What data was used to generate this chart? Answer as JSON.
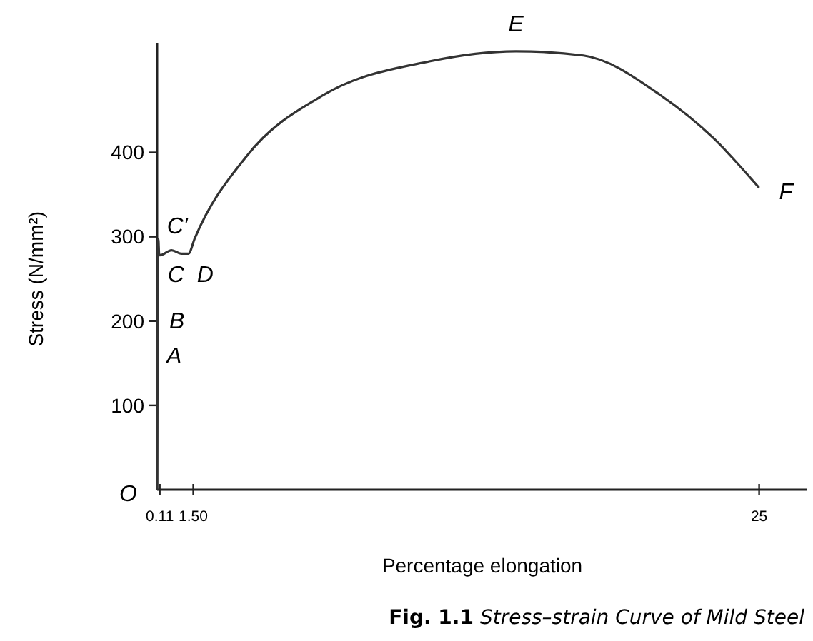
{
  "chart_data": {
    "type": "line",
    "title": "Fig. 1.1 Stress–strain Curve of Mild Steel",
    "xlabel": "Percentage elongation",
    "ylabel": "Stress (N/mm²)",
    "x": [
      0,
      0.03,
      0.05,
      0.08,
      0.11,
      0.6,
      1.0,
      1.3,
      1.56,
      3.7,
      6.9,
      11.3,
      14.9,
      17.7,
      20.9,
      23.1,
      25
    ],
    "series": [
      {
        "color": "#333333",
        "values": [
          0,
          290,
          297,
          280,
          278,
          284,
          280,
          280,
          298,
          395,
          468,
          508,
          520,
          515,
          468,
          417,
          358
        ]
      }
    ],
    "xlim": [
      0,
      27
    ],
    "xticks": [
      0.11,
      {
        "value": 1.5,
        "label": "1.50"
      },
      25
    ],
    "ylim": [
      0,
      530
    ],
    "yticks": [
      100,
      200,
      300,
      400
    ],
    "grid": false,
    "marker": "none",
    "line_style": "solid",
    "annotations": [
      {
        "text": "O",
        "x": 0,
        "y": 0
      },
      {
        "text": "A",
        "x": 0.03,
        "y": 160
      },
      {
        "text": "B",
        "x": 0.03,
        "y": 200
      },
      {
        "text": "C′",
        "x": 0.05,
        "y": 297
      },
      {
        "text": "C",
        "x": 0.08,
        "y": 280
      },
      {
        "text": "D",
        "x": 1.3,
        "y": 280
      },
      {
        "text": "E",
        "x": 14.9,
        "y": 520
      },
      {
        "text": "F",
        "x": 25,
        "y": 358
      }
    ]
  }
}
